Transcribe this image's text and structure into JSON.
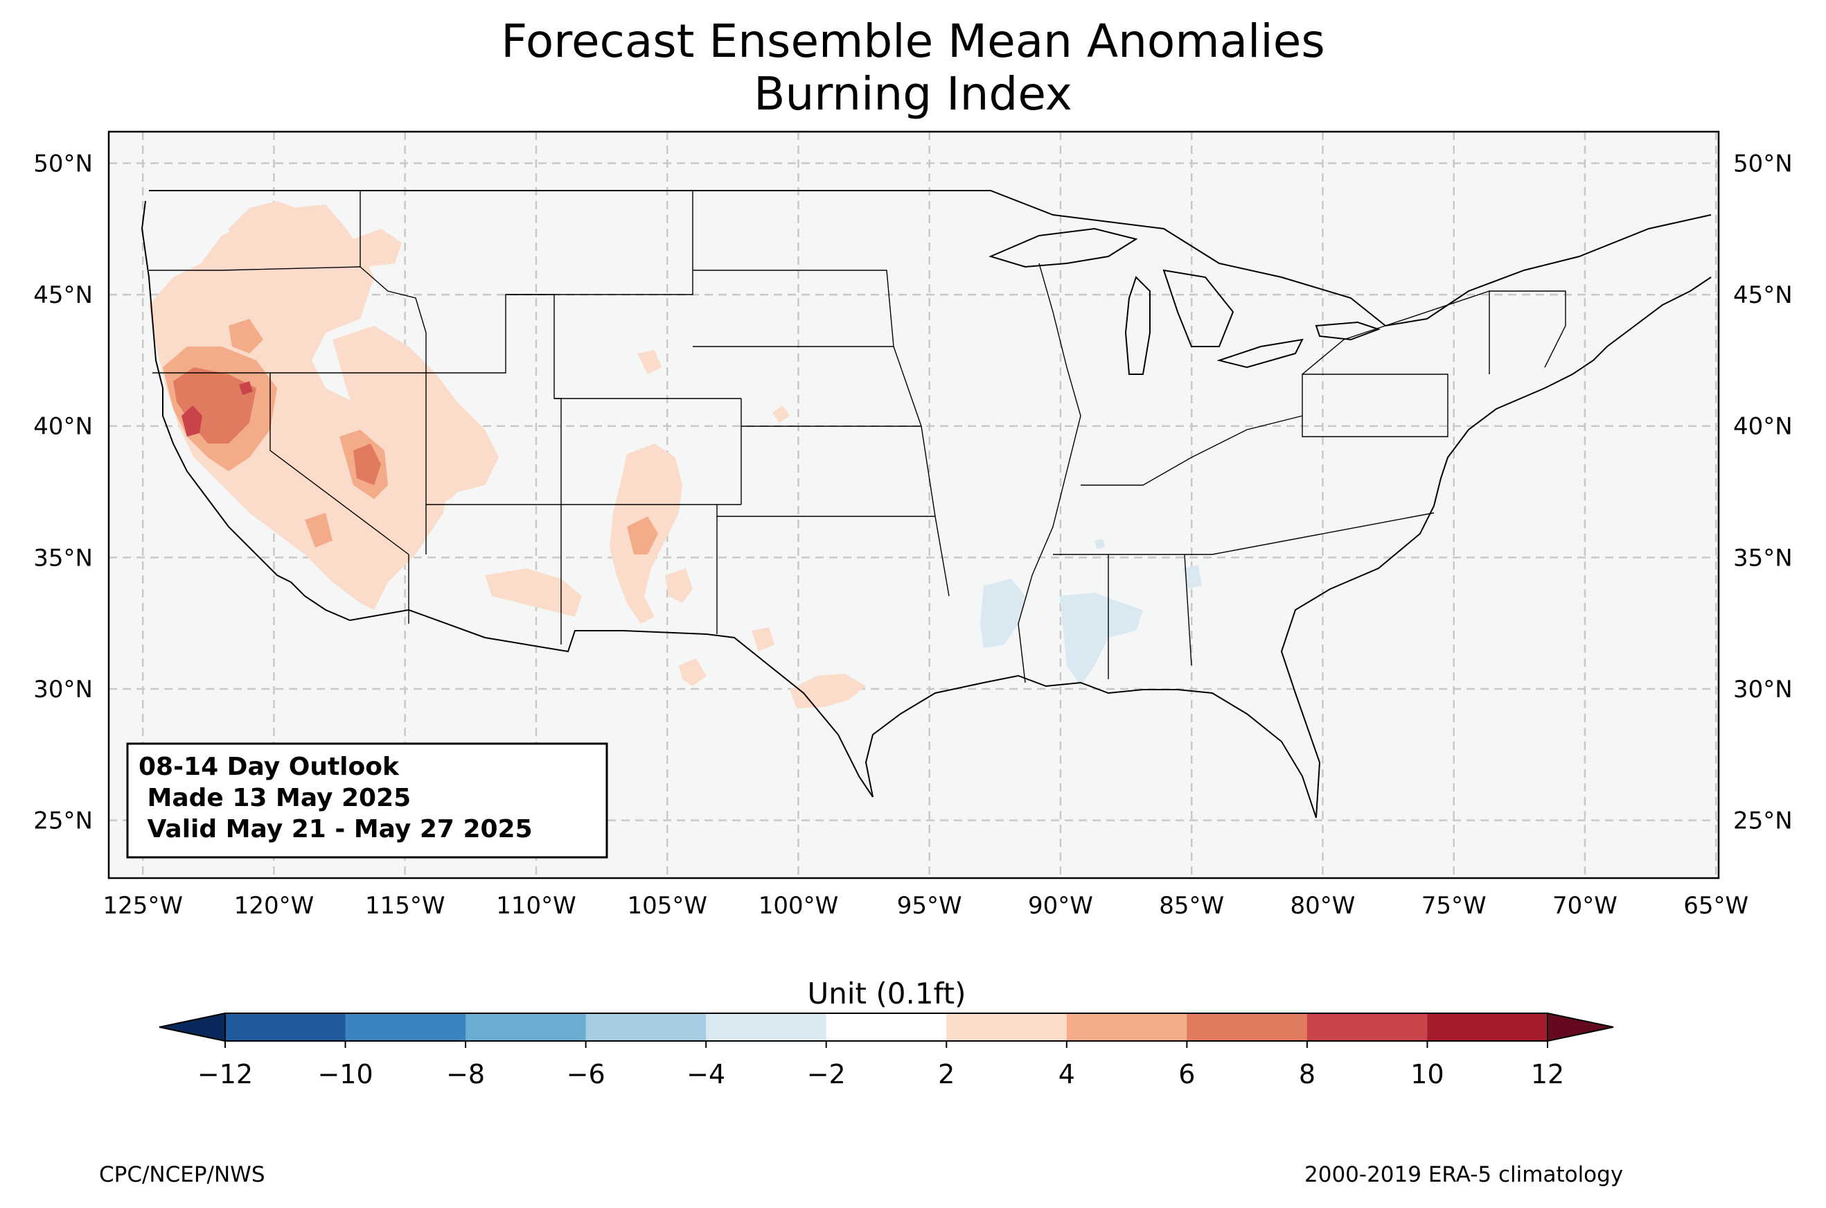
{
  "title_line1": "Forecast Ensemble Mean Anomalies",
  "title_line2": "Burning Index",
  "map": {
    "lon_range": [
      -126.3,
      -64.9
    ],
    "lat_range": [
      22.8,
      51.2
    ],
    "lon_ticks": [
      -125,
      -120,
      -115,
      -110,
      -105,
      -100,
      -95,
      -90,
      -85,
      -80,
      -75,
      -70,
      -65
    ],
    "lat_ticks": [
      25,
      30,
      35,
      40,
      45,
      50
    ],
    "lon_labels": [
      "125°W",
      "120°W",
      "115°W",
      "110°W",
      "105°W",
      "100°W",
      "95°W",
      "90°W",
      "85°W",
      "80°W",
      "75°W",
      "70°W",
      "65°W"
    ],
    "lat_labels": [
      "25°N",
      "30°N",
      "35°N",
      "40°N",
      "45°N",
      "50°N"
    ],
    "gridlines": true,
    "background_color": "#f5f6f6"
  },
  "outlook_box": {
    "line1": "08-14 Day Outlook",
    "line2": " Made 13 May 2025",
    "line3": " Valid May 21 - May 27 2025"
  },
  "colorbar": {
    "label": "Unit (0.1ft)",
    "ticks": [
      "−12",
      "−10",
      "−8",
      "−6",
      "−4",
      "−2",
      "2",
      "4",
      "6",
      "8",
      "10",
      "12"
    ],
    "colors": [
      "#1f5a9c",
      "#3a85bf",
      "#6aacd2",
      "#a6cde3",
      "#d9e8f1",
      "#ffffff",
      "#fbdcca",
      "#f4ab8a",
      "#e07b5f",
      "#c9444a",
      "#a51b2c"
    ],
    "under_color": "#09295c",
    "over_color": "#650a1e"
  },
  "footer": {
    "left": "CPC/NCEP/NWS",
    "right": "2000-2019 ERA-5 climatology"
  }
}
